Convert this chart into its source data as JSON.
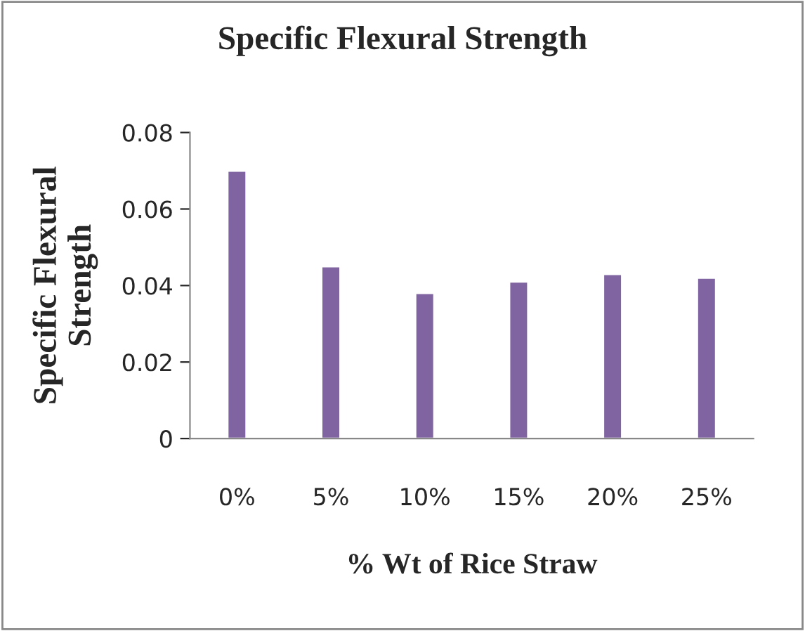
{
  "chart_data": {
    "type": "bar",
    "title": "Specific Flexural Strength",
    "xlabel": "% Wt of Rice Straw",
    "ylabel": "Specific Flexural Strength",
    "categories": [
      "0%",
      "5%",
      "10%",
      "15%",
      "20%",
      "25%"
    ],
    "values": [
      0.07,
      0.045,
      0.038,
      0.041,
      0.043,
      0.042
    ],
    "color": "#8064a2",
    "ylim": [
      0,
      0.08
    ],
    "yticks": [
      {
        "value": 0,
        "label": "0"
      },
      0.02,
      0.04,
      0.06,
      0.08
    ],
    "grid": false,
    "legend": false
  }
}
